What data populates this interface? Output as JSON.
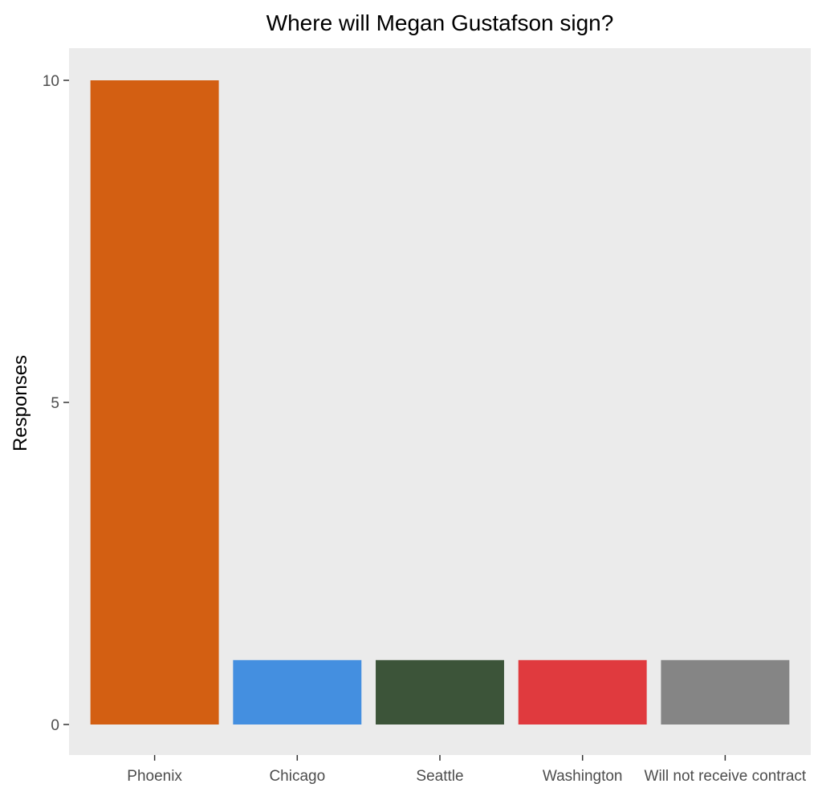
{
  "chart_data": {
    "type": "bar",
    "title": "Where will Megan Gustafson sign?",
    "xlabel": "",
    "ylabel": "Responses",
    "categories": [
      "Phoenix",
      "Chicago",
      "Seattle",
      "Washington",
      "Will not receive contract"
    ],
    "values": [
      10,
      1,
      1,
      1,
      1
    ],
    "colors": [
      "#d35f12",
      "#448fe0",
      "#3c5439",
      "#e03a3e",
      "#858585"
    ],
    "ylim": [
      0,
      10.4
    ],
    "yticks": [
      0,
      5,
      10
    ],
    "panel_background": "#ebebeb",
    "grid": false,
    "legend": "none"
  }
}
